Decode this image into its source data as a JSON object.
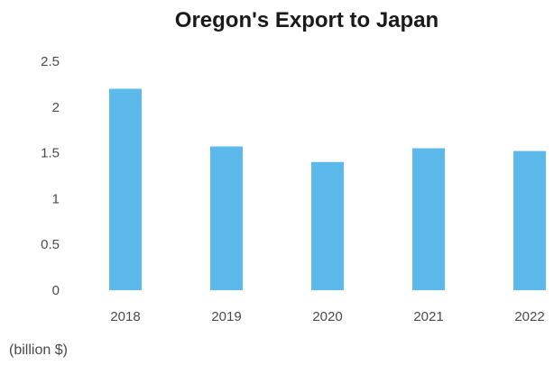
{
  "chart_data": {
    "type": "bar",
    "title": "Oregon's Export to Japan",
    "unit_label": "(billion $)",
    "categories": [
      "2018",
      "2019",
      "2020",
      "2021",
      "2022"
    ],
    "values": [
      2.2,
      1.57,
      1.4,
      1.55,
      1.52
    ],
    "ylim": [
      0,
      2.5
    ],
    "yticks": [
      "0",
      "0.5",
      "1",
      "1.5",
      "2",
      "2.5"
    ],
    "grid": false,
    "bar_color": "#5db8ec"
  }
}
